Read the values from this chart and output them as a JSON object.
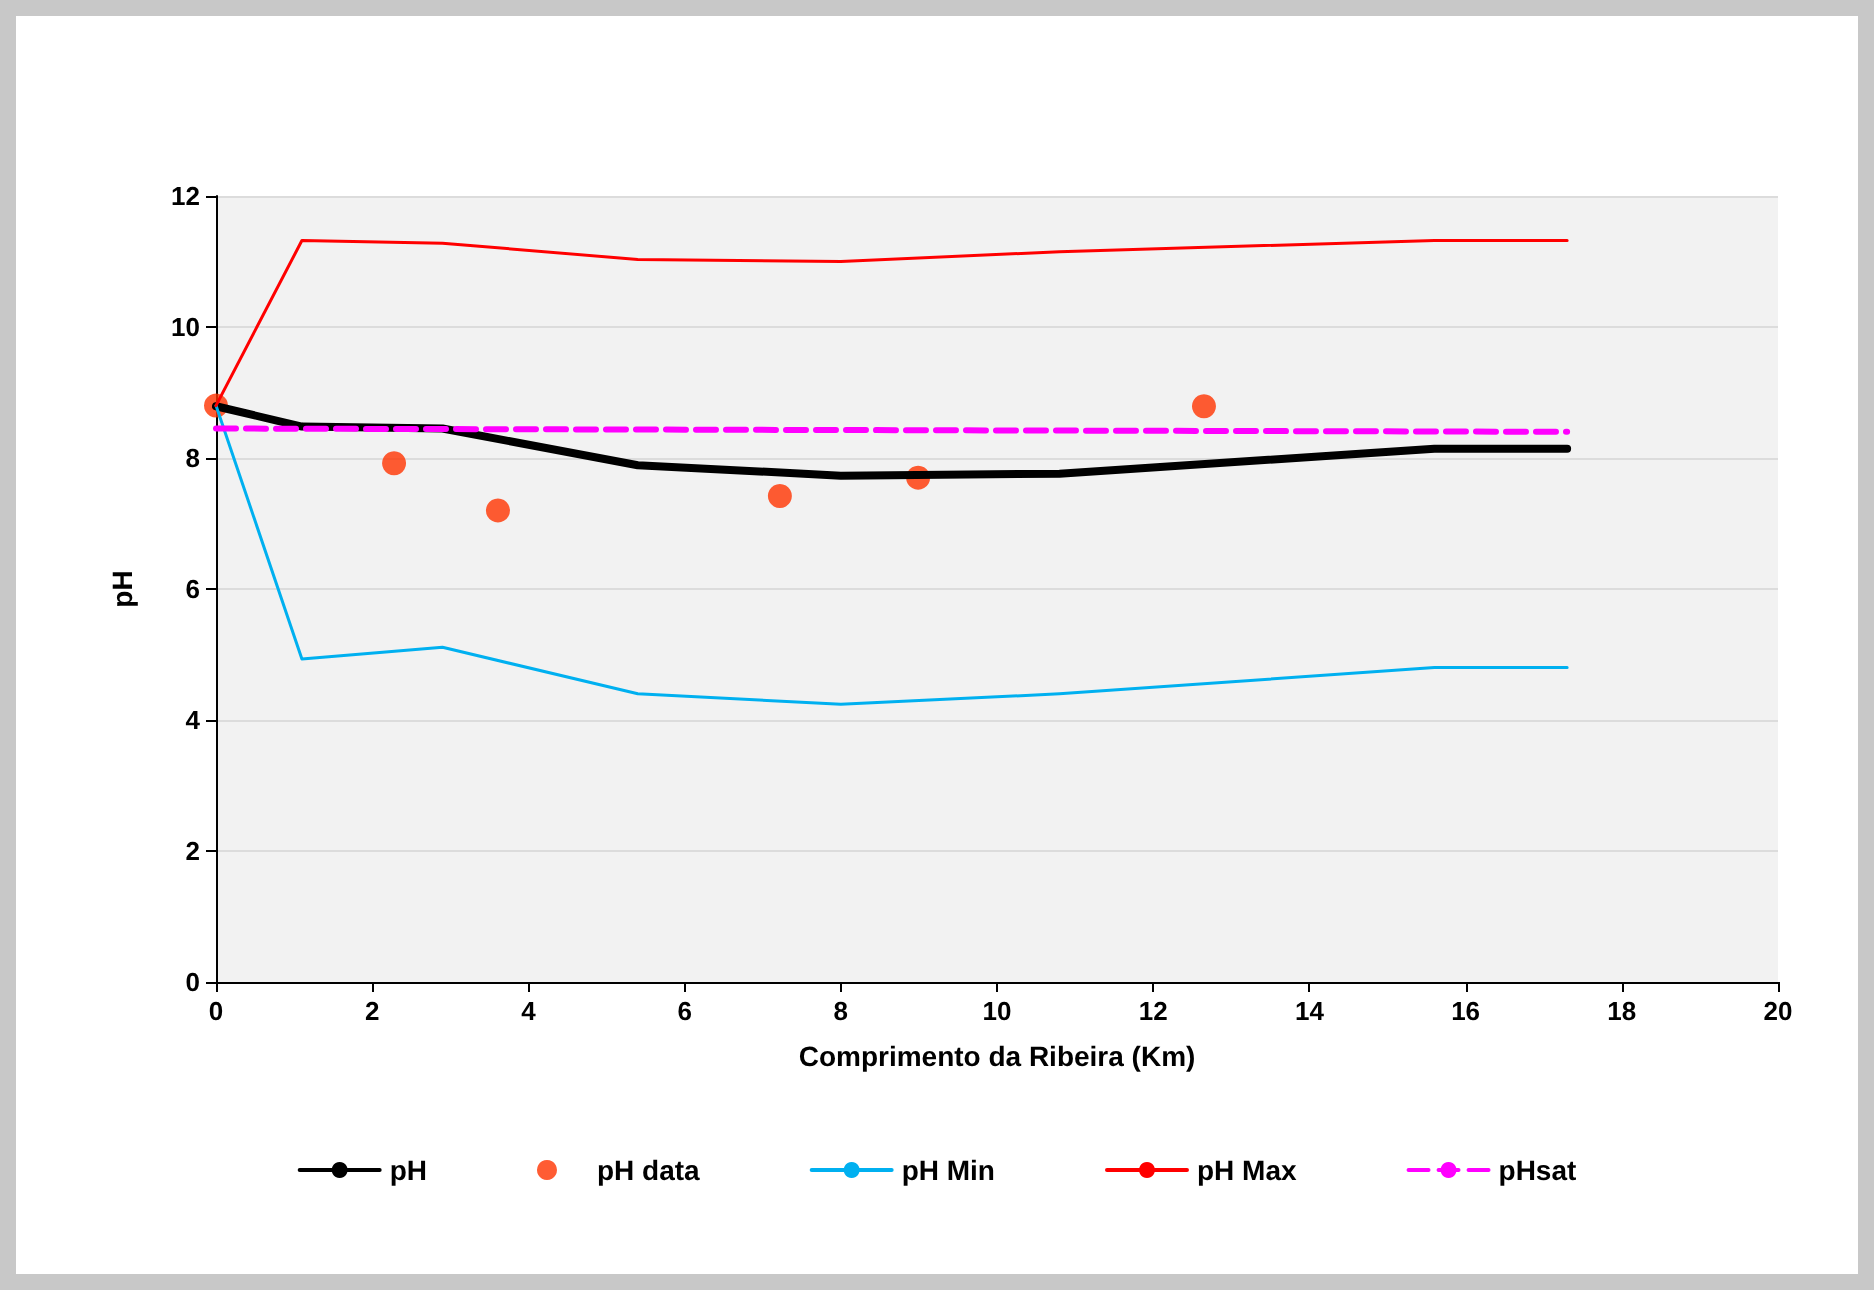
{
  "chart_data": {
    "type": "line",
    "xlabel": "Comprimento da Ribeira (Km)",
    "ylabel": "pH",
    "xlim": [
      0,
      20
    ],
    "xticks": [
      0,
      2,
      4,
      6,
      8,
      10,
      12,
      14,
      16,
      18,
      20
    ],
    "ylim": [
      0,
      12
    ],
    "yticks": [
      0,
      2,
      4,
      6,
      8,
      10,
      12
    ],
    "grid": "y",
    "legend": "bottom",
    "marker": "none",
    "line_style": "solid",
    "series": [
      {
        "name": "pH",
        "color": "#000000",
        "x": [
          0,
          1.1,
          2.9,
          5.4,
          8.0,
          10.8,
          15.6,
          17.3
        ],
        "values": [
          8.79,
          8.48,
          8.45,
          7.89,
          7.73,
          7.76,
          8.14,
          8.14
        ]
      },
      {
        "name": "pH data",
        "type": "scatter",
        "marker": "circle",
        "color": "#ff3300",
        "x": [
          0,
          2.28,
          3.61,
          7.22,
          8.99,
          12.65
        ],
        "values": [
          8.8,
          7.92,
          7.2,
          7.42,
          7.7,
          8.79
        ]
      },
      {
        "name": "pH Min",
        "color": "#00b0f0",
        "x": [
          0,
          1.1,
          2.9,
          5.4,
          8.0,
          10.8,
          15.6,
          17.3
        ],
        "values": [
          8.8,
          4.93,
          5.11,
          4.4,
          4.24,
          4.4,
          4.8,
          4.8
        ]
      },
      {
        "name": "pH Max",
        "color": "#ff0000",
        "x": [
          0,
          1.1,
          2.9,
          5.4,
          8.0,
          10.8,
          15.6,
          17.3
        ],
        "values": [
          8.8,
          11.32,
          11.28,
          11.03,
          11.0,
          11.15,
          11.32,
          11.32
        ]
      },
      {
        "name": "pHsat",
        "color": "#ff00ff",
        "line_style": "dashed",
        "x": [
          0,
          17.3
        ],
        "values": [
          8.45,
          8.4
        ]
      }
    ]
  }
}
